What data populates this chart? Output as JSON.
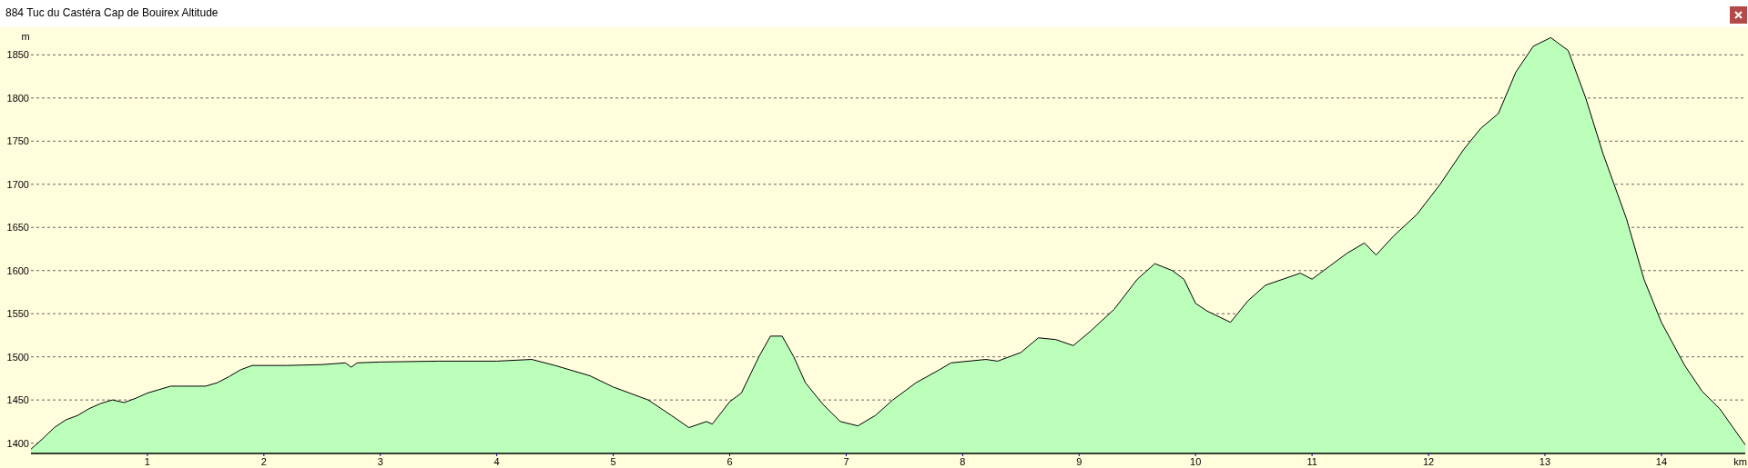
{
  "chart_data": {
    "type": "area",
    "title": "884 Tuc du Castéra Cap de Bouirex Altitude",
    "xlabel": "km",
    "ylabel": "m",
    "x": [
      0,
      0.1,
      0.2,
      0.3,
      0.4,
      0.5,
      0.6,
      0.7,
      0.8,
      0.9,
      1.0,
      1.1,
      1.2,
      1.3,
      1.5,
      1.6,
      1.7,
      1.8,
      1.9,
      2.2,
      2.5,
      2.7,
      2.75,
      2.8,
      3.0,
      3.5,
      4.0,
      4.3,
      4.5,
      4.8,
      5.0,
      5.3,
      5.5,
      5.65,
      5.8,
      5.85,
      6.0,
      6.1,
      6.25,
      6.35,
      6.45,
      6.55,
      6.65,
      6.8,
      6.95,
      7.1,
      7.25,
      7.4,
      7.6,
      7.8,
      7.9,
      8.2,
      8.3,
      8.5,
      8.65,
      8.8,
      8.95,
      9.1,
      9.3,
      9.5,
      9.65,
      9.8,
      9.9,
      10.0,
      10.1,
      10.3,
      10.45,
      10.6,
      10.75,
      10.9,
      11.0,
      11.15,
      11.3,
      11.45,
      11.55,
      11.7,
      11.9,
      12.1,
      12.3,
      12.45,
      12.6,
      12.75,
      12.9,
      13.05,
      13.2,
      13.35,
      13.5,
      13.7,
      13.85,
      14.0,
      14.2,
      14.35,
      14.5,
      14.72
    ],
    "series": [
      {
        "color": "#bbffbb",
        "values": [
          1393,
          1405,
          1418,
          1427,
          1432,
          1440,
          1446,
          1450,
          1447,
          1452,
          1458,
          1462,
          1466,
          1466,
          1466,
          1470,
          1477,
          1485,
          1490,
          1490,
          1491,
          1493,
          1488,
          1493,
          1494,
          1495,
          1495,
          1497,
          1490,
          1478,
          1465,
          1450,
          1432,
          1418,
          1425,
          1422,
          1448,
          1458,
          1500,
          1524,
          1524,
          1500,
          1470,
          1445,
          1425,
          1420,
          1432,
          1450,
          1470,
          1485,
          1493,
          1497,
          1495,
          1505,
          1522,
          1520,
          1513,
          1530,
          1555,
          1590,
          1608,
          1600,
          1590,
          1562,
          1553,
          1540,
          1565,
          1583,
          1590,
          1597,
          1590,
          1605,
          1620,
          1632,
          1618,
          1640,
          1665,
          1700,
          1740,
          1765,
          1782,
          1830,
          1860,
          1870,
          1855,
          1800,
          1735,
          1660,
          1590,
          1540,
          1490,
          1460,
          1440,
          1398
        ]
      }
    ],
    "xlim": [
      0,
      14.72
    ],
    "xticks": [
      1,
      2,
      3,
      4,
      5,
      6,
      7,
      8,
      9,
      10,
      11,
      12,
      13,
      14
    ],
    "ylim": [
      1388,
      1882
    ],
    "yticks": [
      1400,
      1450,
      1500,
      1550,
      1600,
      1650,
      1700,
      1750,
      1800,
      1850
    ],
    "grid": "y"
  }
}
